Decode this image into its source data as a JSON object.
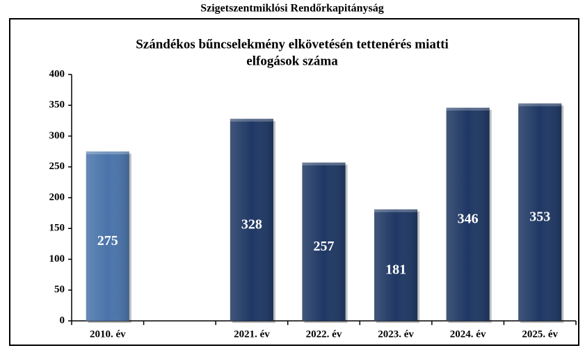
{
  "chart_data": {
    "type": "bar",
    "header": "Szigetszentmiklósi Rendőrkapitányság",
    "title": [
      "Szándékos bűncselekmény elkövetésén tettenérés miatti",
      "elfogások száma"
    ],
    "categories": [
      "2010. év",
      null,
      "2021. év",
      "2022. év",
      "2023. év",
      "2024. év",
      "2025. év"
    ],
    "values": [
      275,
      null,
      328,
      257,
      181,
      346,
      353
    ],
    "colors": [
      "#4a74aa",
      null,
      "#1f3864",
      "#1f3864",
      "#1f3864",
      "#1f3864",
      "#1f3864"
    ],
    "ylim": [
      0,
      400
    ],
    "yticks": [
      0,
      50,
      100,
      150,
      200,
      250,
      300,
      350,
      400
    ],
    "grid": false
  }
}
